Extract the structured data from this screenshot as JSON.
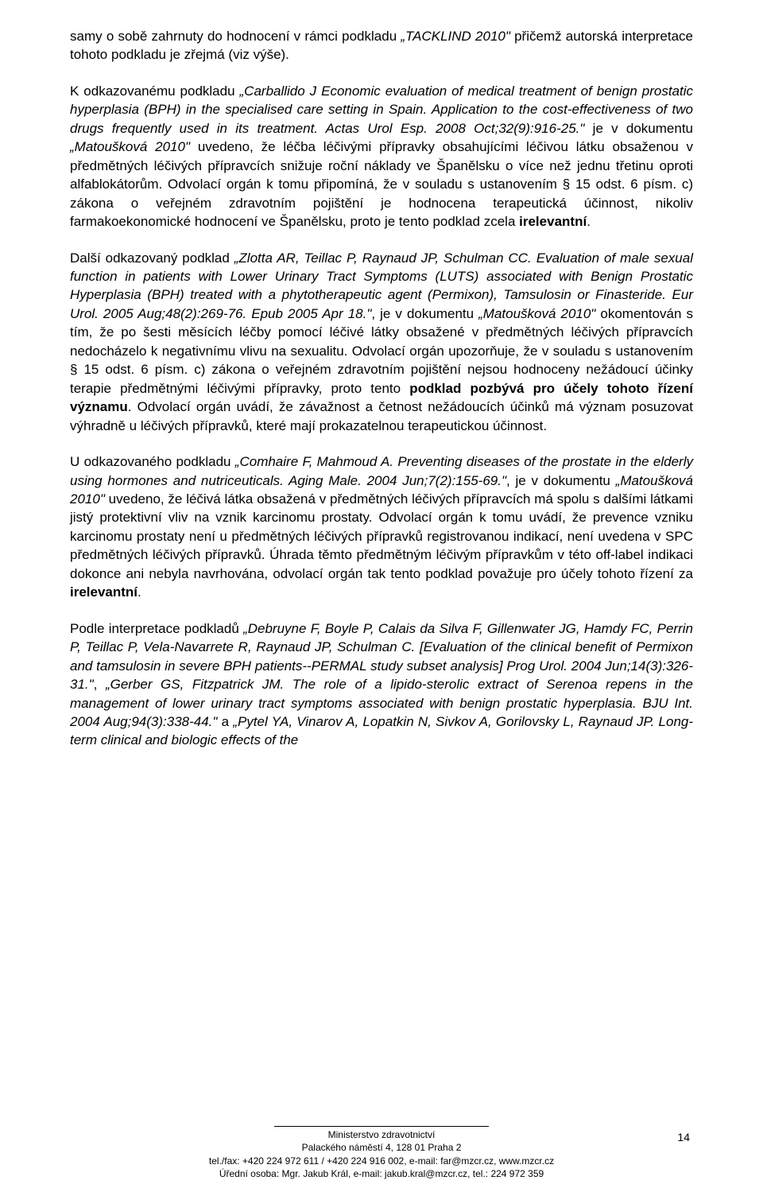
{
  "document": {
    "text_color": "#000000",
    "background_color": "#ffffff",
    "font_family": "Arial",
    "body_font_size": 17,
    "footer_font_size": 12,
    "page_number_font_size": 14,
    "line_height": 1.38
  },
  "paragraphs": {
    "p1_run1": "samy o sobě zahrnuty do hodnocení v rámci podkladu ",
    "p1_italic1": "„TACKLIND 2010\"",
    "p1_run2": " přičemž autorská interpretace tohoto podkladu je zřejmá (viz výše).",
    "p2_run1": "K odkazovanému podkladu ",
    "p2_italic1": "„Carballido J Economic evaluation of medical treatment of benign prostatic hyperplasia (BPH) in the specialised care setting in Spain. Application to the cost-effectiveness of two drugs frequently used in its treatment. Actas Urol Esp. 2008 Oct;32(9):916-25.\"",
    "p2_run2": " je v dokumentu ",
    "p2_italic2": "„Matoušková 2010\"",
    "p2_run3": " uvedeno, že léčba léčivými přípravky obsahujícími léčivou látku obsaženou v předmětných léčivých přípravcích snižuje roční náklady ve Španělsku o více než jednu třetinu oproti alfablokátorům. Odvolací orgán k tomu připomíná, že v souladu s ustanovením § 15 odst. 6 písm. c) zákona o veřejném zdravotním pojištění je hodnocena terapeutická účinnost, nikoliv farmakoekonomické hodnocení ve Španělsku, proto je tento podklad zcela ",
    "p2_bold1": "irelevantní",
    "p2_run4": ".",
    "p3_run1": "Další odkazovaný podklad ",
    "p3_italic1": "„Zlotta AR, Teillac P, Raynaud JP, Schulman CC. Evaluation of male sexual function in patients with Lower Urinary Tract Symptoms (LUTS) associated with Benign Prostatic Hyperplasia (BPH) treated with a phytotherapeutic agent (Permixon), Tamsulosin or Finasteride. Eur Urol. 2005 Aug;48(2):269-76. Epub 2005 Apr 18.\"",
    "p3_run2": ", je v dokumentu ",
    "p3_italic2": "„Matoušková 2010\"",
    "p3_run3": " okomentován s tím, že po šesti měsících léčby pomocí léčivé látky obsažené v předmětných léčivých přípravcích nedocházelo k negativnímu vlivu na sexualitu. Odvolací orgán upozorňuje, že v souladu s ustanovením § 15 odst. 6 písm. c) zákona o veřejném zdravotním pojištění nejsou hodnoceny nežádoucí účinky terapie předmětnými léčivými přípravky, proto tento ",
    "p3_bold1": "podklad pozbývá pro účely tohoto řízení významu",
    "p3_run4": ". Odvolací orgán uvádí, že závažnost a četnost nežádoucích účinků má význam posuzovat výhradně u léčivých přípravků, které mají prokazatelnou terapeutickou účinnost.",
    "p4_run1": "U odkazovaného podkladu ",
    "p4_italic1": "„Comhaire F, Mahmoud A. Preventing diseases of the prostate in the elderly using hormones and nutriceuticals. Aging Male. 2004 Jun;7(2):155-69.\"",
    "p4_run2": ", je v dokumentu ",
    "p4_italic2": "„Matoušková 2010\"",
    "p4_run3": " uvedeno, že léčivá látka obsažená v předmětných léčivých přípravcích má spolu s dalšími látkami jistý protektivní vliv na vznik karcinomu prostaty. Odvolací orgán k tomu uvádí, že prevence vzniku karcinomu prostaty není u předmětných léčivých přípravků registrovanou indikací, není uvedena v SPC předmětných léčivých přípravků. Úhrada těmto předmětným léčivým přípravkům v této off-label indikaci dokonce ani nebyla navrhována, odvolací orgán tak tento podklad považuje pro účely tohoto řízení za ",
    "p4_bold1": "irelevantní",
    "p4_run4": ".",
    "p5_run1": "Podle interpretace podkladů ",
    "p5_italic1": "„Debruyne F, Boyle P, Calais da Silva F, Gillenwater JG, Hamdy FC, Perrin P, Teillac P, Vela-Navarrete R, Raynaud JP, Schulman C. [Evaluation of the clinical benefit of Permixon and tamsulosin in severe BPH patients--PERMAL study subset analysis] Prog Urol. 2004 Jun;14(3):326-31.\"",
    "p5_run2": ", ",
    "p5_italic2": "„Gerber GS, Fitzpatrick JM. The role of a lipido-sterolic extract of Serenoa repens in the management of lower urinary tract symptoms associated with benign prostatic hyperplasia. BJU Int. 2004 Aug;94(3):338-44.\"",
    "p5_run3": " a ",
    "p5_italic3": "„Pytel YA, Vinarov A, Lopatkin N, Sivkov A, Gorilovsky L, Raynaud JP. Long-term clinical and biologic effects of the"
  },
  "footer": {
    "line1": "Ministerstvo zdravotnictví",
    "line2": "Palackého náměstí 4, 128 01 Praha 2",
    "line3": "tel./fax: +420 224 972 611 / +420 224 916 002, e-mail: far@mzcr.cz, www.mzcr.cz",
    "line4": "Úřední osoba: Mgr. Jakub Král, e-mail: jakub.kral@mzcr.cz, tel.: 224 972 359"
  },
  "page_number": "14"
}
